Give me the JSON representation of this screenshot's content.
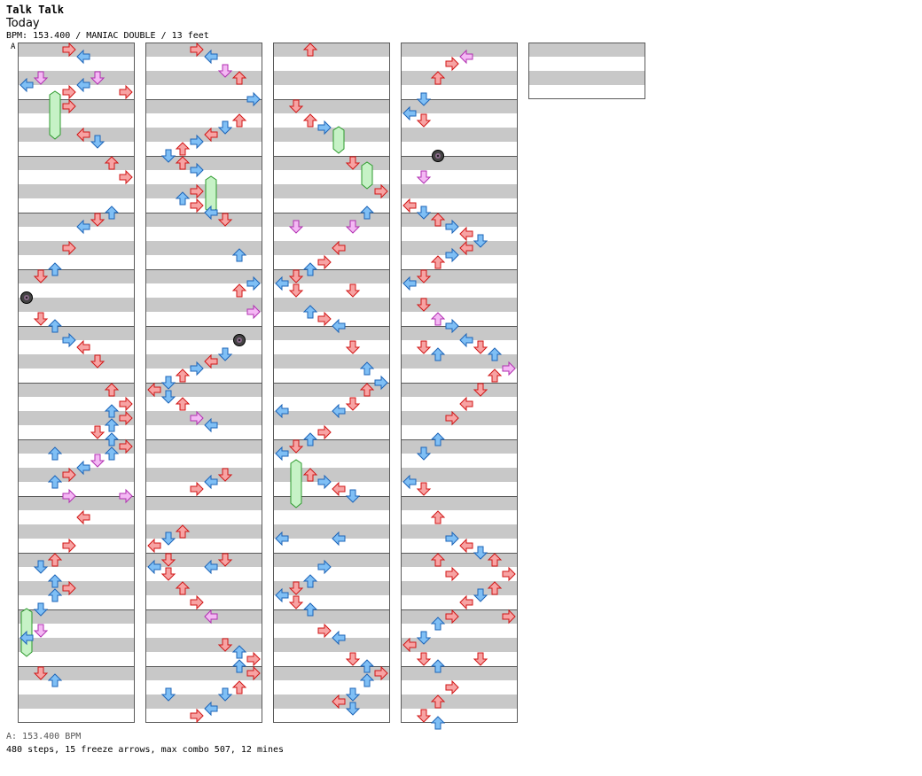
{
  "song": {
    "title": "Talk Talk",
    "artist": "Today",
    "meta": "BPM: 153.400 / MANIAC DOUBLE / 13 feet"
  },
  "section_marker": "A",
  "footer": {
    "bpm": "A: 153.400 BPM",
    "stats": "480 steps, 15 freeze arrows, max combo 507, 12 mines"
  },
  "colors": {
    "band": "#c8c8c8",
    "column_border": "#5a5a5a",
    "arrow_red": "#f7a3a3",
    "arrow_red_stroke": "#d11616",
    "arrow_blue": "#7fbff5",
    "arrow_blue_stroke": "#1c64b8",
    "arrow_pink": "#f4b8f4",
    "arrow_pink_stroke": "#b12fb1",
    "freeze": "#c6f2c6",
    "freeze_stroke": "#2c9a2c",
    "mine": "#444444"
  },
  "chart_data": {
    "type": "step-chart",
    "lanes": 8,
    "measures_total": 49,
    "measures_per_column": 12,
    "note_types": [
      "arrow",
      "freeze",
      "mine"
    ],
    "note_icons": [
      "left-arrow-icon",
      "down-arrow-icon",
      "up-arrow-icon",
      "right-arrow-icon",
      "freeze-arrow-icon",
      "mine-icon"
    ],
    "steps": 480,
    "freeze_arrows": 15,
    "max_combo": 507,
    "mines": 12
  }
}
